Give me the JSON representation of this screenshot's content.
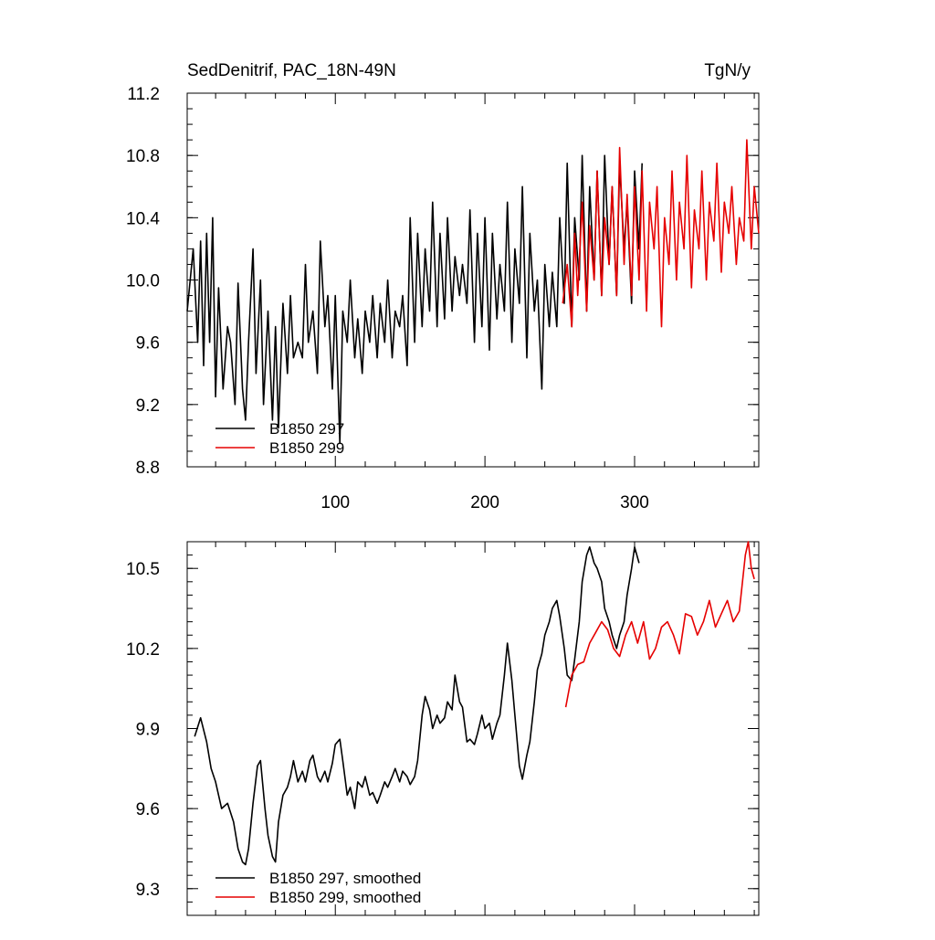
{
  "header": {
    "title": "SedDenitrif, PAC_18N-49N",
    "units": "TgN/y"
  },
  "chart_data": [
    {
      "type": "line",
      "title": "SedDenitrif, PAC_18N-49N",
      "units": "TgN/y",
      "xlim": [
        1,
        383
      ],
      "ylim": [
        8.8,
        11.2
      ],
      "x_ticks": [
        100,
        200,
        300
      ],
      "x_tick_labels": [
        "100",
        "200",
        "300"
      ],
      "y_ticks": [
        8.8,
        9.2,
        9.6,
        10.0,
        10.4,
        10.8,
        11.2
      ],
      "y_tick_labels": [
        "8.8",
        "9.2",
        "9.6",
        "10.0",
        "10.4",
        "10.8",
        "11.2"
      ],
      "legend": [
        "B1850 297",
        "B1850 299"
      ],
      "legend_position": "bottom-left",
      "series": [
        {
          "name": "B1850 297",
          "color": "#000000",
          "x": [
            1,
            5,
            8,
            10,
            12,
            14,
            16,
            18,
            20,
            22,
            25,
            28,
            30,
            33,
            35,
            38,
            40,
            42,
            45,
            47,
            50,
            52,
            55,
            58,
            60,
            62,
            65,
            68,
            70,
            72,
            75,
            78,
            80,
            82,
            85,
            88,
            90,
            93,
            95,
            98,
            100,
            103,
            105,
            108,
            110,
            113,
            115,
            118,
            120,
            123,
            125,
            128,
            130,
            133,
            135,
            138,
            140,
            143,
            145,
            148,
            150,
            153,
            155,
            158,
            160,
            163,
            165,
            168,
            170,
            173,
            175,
            178,
            180,
            183,
            185,
            188,
            190,
            193,
            195,
            198,
            200,
            203,
            205,
            208,
            210,
            213,
            215,
            218,
            220,
            223,
            225,
            228,
            230,
            233,
            235,
            238,
            240,
            243,
            245,
            248,
            250,
            253,
            255,
            258,
            260,
            263,
            265,
            268,
            270,
            273,
            275,
            278,
            280,
            283,
            285,
            288,
            290,
            293,
            295,
            298,
            300,
            303,
            305
          ],
          "y": [
            9.8,
            10.2,
            9.6,
            10.25,
            9.45,
            10.3,
            9.6,
            10.4,
            9.25,
            9.95,
            9.3,
            9.7,
            9.6,
            9.2,
            9.98,
            9.3,
            9.1,
            9.6,
            10.2,
            9.4,
            10.0,
            9.2,
            9.8,
            9.1,
            9.7,
            9.05,
            9.85,
            9.4,
            9.9,
            9.5,
            9.6,
            9.5,
            10.1,
            9.6,
            9.8,
            9.4,
            10.25,
            9.7,
            9.9,
            9.3,
            9.9,
            8.95,
            9.8,
            9.6,
            10.0,
            9.5,
            9.75,
            9.4,
            9.8,
            9.6,
            9.9,
            9.5,
            9.85,
            9.6,
            10.0,
            9.5,
            9.8,
            9.7,
            9.9,
            9.45,
            10.4,
            9.6,
            10.3,
            9.7,
            10.2,
            9.8,
            10.5,
            9.7,
            10.3,
            9.75,
            10.4,
            9.8,
            10.15,
            9.9,
            10.1,
            9.85,
            10.45,
            9.6,
            10.3,
            9.7,
            10.4,
            9.55,
            10.3,
            9.75,
            10.1,
            9.8,
            10.5,
            9.6,
            10.2,
            9.85,
            10.6,
            9.5,
            10.3,
            9.8,
            10.0,
            9.3,
            10.1,
            9.7,
            10.05,
            9.7,
            10.4,
            9.85,
            10.75,
            9.7,
            10.4,
            10.0,
            10.8,
            9.8,
            10.6,
            10.0,
            10.7,
            9.9,
            10.8,
            10.1,
            10.6,
            9.9,
            10.75,
            10.2,
            10.5,
            9.85,
            10.7,
            10.2,
            10.75
          ]
        },
        {
          "name": "B1850 299",
          "color": "#e60000",
          "x": [
            252,
            255,
            258,
            260,
            262,
            265,
            268,
            270,
            273,
            275,
            278,
            280,
            283,
            285,
            288,
            290,
            293,
            295,
            298,
            300,
            303,
            305,
            308,
            310,
            313,
            315,
            318,
            320,
            323,
            325,
            328,
            330,
            333,
            335,
            338,
            340,
            343,
            345,
            348,
            350,
            353,
            355,
            358,
            360,
            363,
            365,
            368,
            370,
            373,
            375,
            378,
            380,
            383
          ],
          "y": [
            9.85,
            10.1,
            9.7,
            10.3,
            9.9,
            10.5,
            9.8,
            10.35,
            10.0,
            10.7,
            9.9,
            10.4,
            10.1,
            10.6,
            9.9,
            10.85,
            10.1,
            10.55,
            9.9,
            10.6,
            10.0,
            10.7,
            9.8,
            10.5,
            10.2,
            10.6,
            9.7,
            10.4,
            10.1,
            10.7,
            10.0,
            10.5,
            10.2,
            10.8,
            9.95,
            10.45,
            10.2,
            10.7,
            10.0,
            10.5,
            10.25,
            10.75,
            10.05,
            10.5,
            10.3,
            10.6,
            10.1,
            10.4,
            10.25,
            10.9,
            10.2,
            10.6,
            10.3
          ]
        }
      ]
    },
    {
      "type": "line",
      "xlim": [
        1,
        383
      ],
      "ylim": [
        9.2,
        10.6
      ],
      "x_ticks": [
        100,
        200,
        300
      ],
      "y_ticks": [
        9.3,
        9.6,
        9.9,
        10.2,
        10.5
      ],
      "y_tick_labels": [
        "9.3",
        "9.6",
        "9.9",
        "10.2",
        "10.5"
      ],
      "legend": [
        "B1850 297, smoothed",
        "B1850 299, smoothed"
      ],
      "legend_position": "bottom-left",
      "series": [
        {
          "name": "B1850 297, smoothed",
          "color": "#000000",
          "x": [
            6,
            10,
            14,
            17,
            20,
            24,
            28,
            32,
            35,
            38,
            40,
            42,
            45,
            48,
            50,
            53,
            55,
            58,
            60,
            62,
            65,
            68,
            70,
            72,
            75,
            78,
            80,
            83,
            85,
            88,
            90,
            93,
            95,
            98,
            100,
            103,
            105,
            108,
            110,
            113,
            115,
            118,
            120,
            123,
            125,
            128,
            130,
            133,
            135,
            138,
            140,
            143,
            145,
            148,
            150,
            153,
            155,
            158,
            160,
            163,
            165,
            168,
            170,
            173,
            175,
            178,
            180,
            183,
            185,
            188,
            190,
            193,
            195,
            198,
            200,
            203,
            205,
            208,
            210,
            213,
            215,
            218,
            220,
            223,
            225,
            228,
            230,
            233,
            235,
            238,
            240,
            243,
            245,
            248,
            250,
            253,
            255,
            258,
            260,
            263,
            265,
            268,
            270,
            273,
            275,
            278,
            280,
            283,
            285,
            288,
            290,
            293,
            295,
            298,
            300,
            303
          ],
          "y": [
            9.87,
            9.94,
            9.85,
            9.75,
            9.7,
            9.6,
            9.62,
            9.55,
            9.45,
            9.4,
            9.39,
            9.45,
            9.62,
            9.76,
            9.78,
            9.6,
            9.5,
            9.42,
            9.4,
            9.55,
            9.65,
            9.68,
            9.72,
            9.78,
            9.7,
            9.74,
            9.7,
            9.78,
            9.8,
            9.72,
            9.7,
            9.74,
            9.7,
            9.77,
            9.84,
            9.86,
            9.78,
            9.65,
            9.68,
            9.6,
            9.7,
            9.68,
            9.72,
            9.65,
            9.66,
            9.62,
            9.65,
            9.7,
            9.68,
            9.72,
            9.75,
            9.7,
            9.74,
            9.72,
            9.69,
            9.72,
            9.78,
            9.95,
            10.02,
            9.97,
            9.9,
            9.95,
            9.92,
            9.94,
            10.0,
            9.97,
            10.1,
            10.0,
            9.98,
            9.85,
            9.86,
            9.84,
            9.88,
            9.95,
            9.9,
            9.92,
            9.86,
            9.92,
            9.95,
            10.1,
            10.22,
            10.08,
            9.95,
            9.76,
            9.71,
            9.8,
            9.85,
            10.0,
            10.12,
            10.18,
            10.25,
            10.3,
            10.35,
            10.38,
            10.32,
            10.2,
            10.1,
            10.08,
            10.16,
            10.3,
            10.45,
            10.55,
            10.58,
            10.52,
            10.5,
            10.45,
            10.35,
            10.3,
            10.25,
            10.2,
            10.25,
            10.3,
            10.4,
            10.5,
            10.58,
            10.52
          ]
        },
        {
          "name": "B1850 299, smoothed",
          "color": "#e60000",
          "x": [
            254,
            258,
            262,
            266,
            270,
            274,
            278,
            282,
            286,
            290,
            294,
            298,
            302,
            306,
            310,
            314,
            318,
            322,
            326,
            330,
            334,
            338,
            342,
            346,
            350,
            354,
            358,
            362,
            366,
            370,
            374,
            376,
            378,
            380
          ],
          "y": [
            9.98,
            10.1,
            10.14,
            10.15,
            10.22,
            10.26,
            10.3,
            10.27,
            10.2,
            10.17,
            10.25,
            10.3,
            10.22,
            10.3,
            10.16,
            10.2,
            10.28,
            10.3,
            10.25,
            10.18,
            10.33,
            10.32,
            10.25,
            10.3,
            10.38,
            10.28,
            10.33,
            10.38,
            10.3,
            10.34,
            10.55,
            10.6,
            10.5,
            10.46
          ]
        }
      ]
    }
  ]
}
